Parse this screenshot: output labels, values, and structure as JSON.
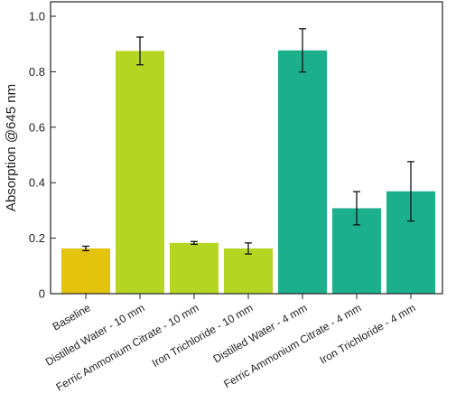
{
  "chart_data": {
    "type": "bar",
    "title": "",
    "xlabel": "",
    "ylabel": "Absorption @645 nm",
    "ylim": [
      0,
      1.0
    ],
    "yticks": [
      "0",
      "0.2",
      "0.4",
      "0.6",
      "0.8",
      "1.0"
    ],
    "grid": false,
    "categories": [
      "Baseline",
      "Distilled Water - 10 mm",
      "Ferric Ammonium Citrate - 10 mm",
      "Iron Trichloride - 10 mm",
      "Distilled Water - 4 mm",
      "Ferric Ammonium Citrate - 4 mm",
      "Iron Trichloride - 4 mm"
    ],
    "values": [
      0.163,
      0.875,
      0.183,
      0.163,
      0.877,
      0.308,
      0.369
    ],
    "errors": [
      0.008,
      0.05,
      0.005,
      0.02,
      0.078,
      0.06,
      0.107
    ],
    "colors": [
      "#e3c30c",
      "#b4d623",
      "#b4d623",
      "#b4d623",
      "#1bb08b",
      "#1bb08b",
      "#1bb08b"
    ]
  }
}
